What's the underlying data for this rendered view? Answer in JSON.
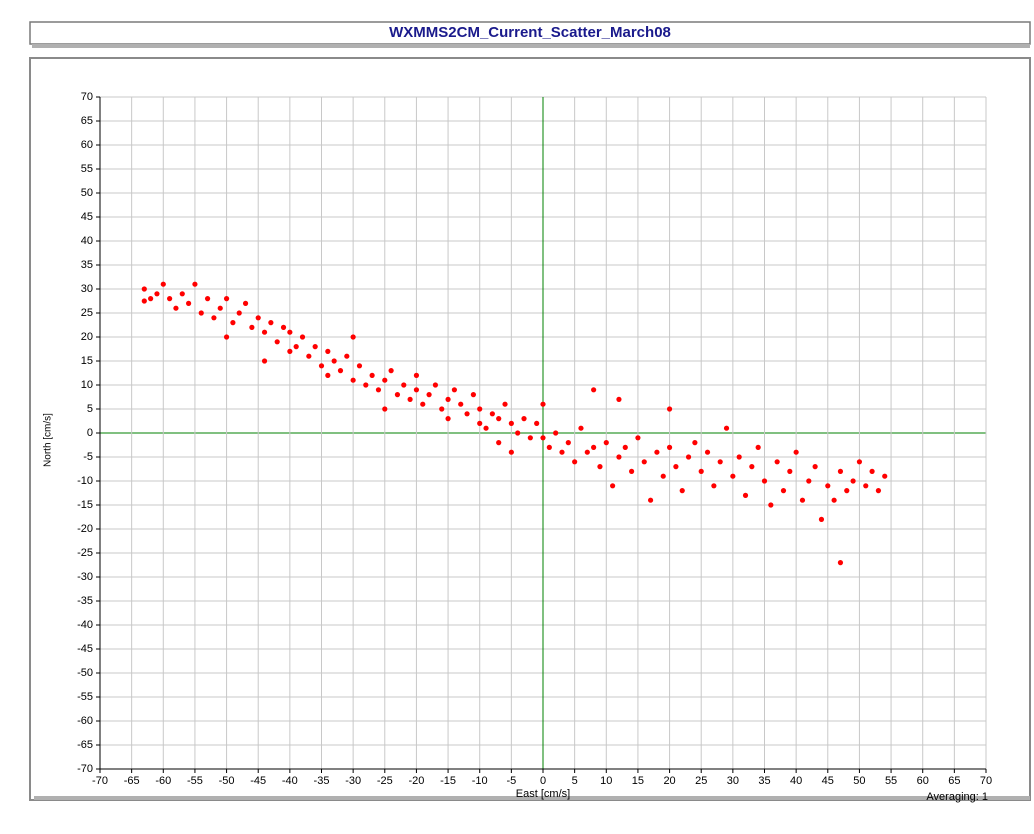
{
  "chart_data": {
    "type": "scatter",
    "title": "WXMMS2CM_Current_Scatter_March08",
    "x_label": "East [cm/s]",
    "y_label": "North [cm/s]",
    "annotation": "Averaging: 1",
    "color": "#ff0000",
    "grid": true,
    "grid_color": "#c8c8c8",
    "zero_line_color": "#008000",
    "xlim": [
      -70,
      70
    ],
    "ylim": [
      -70,
      70
    ],
    "xticks": [
      -70,
      -65,
      -60,
      -55,
      -50,
      -45,
      -40,
      -35,
      -30,
      -25,
      -20,
      -15,
      -10,
      -5,
      0,
      5,
      10,
      15,
      20,
      25,
      30,
      35,
      40,
      45,
      50,
      55,
      60,
      65,
      70
    ],
    "yticks": [
      -70,
      -65,
      -60,
      -55,
      -50,
      -45,
      -40,
      -35,
      -30,
      -25,
      -20,
      -15,
      -10,
      -5,
      0,
      5,
      10,
      15,
      20,
      25,
      30,
      35,
      40,
      45,
      50,
      55,
      60,
      65,
      70
    ],
    "x": [
      -63,
      -63,
      -62,
      -61,
      -60,
      -59,
      -58,
      -57,
      -56,
      -55,
      -54,
      -53,
      -52,
      -51,
      -50,
      -50,
      -49,
      -48,
      -47,
      -46,
      -45,
      -44,
      -44,
      -43,
      -42,
      -41,
      -40,
      -40,
      -39,
      -38,
      -37,
      -36,
      -35,
      -34,
      -34,
      -33,
      -32,
      -31,
      -30,
      -30,
      -29,
      -28,
      -27,
      -26,
      -25,
      -25,
      -24,
      -23,
      -22,
      -21,
      -20,
      -20,
      -19,
      -18,
      -17,
      -16,
      -15,
      -15,
      -14,
      -13,
      -12,
      -11,
      -10,
      -10,
      -9,
      -8,
      -7,
      -7,
      -6,
      -5,
      -5,
      -4,
      -3,
      -2,
      -1,
      0,
      0,
      1,
      2,
      3,
      4,
      5,
      6,
      7,
      8,
      8,
      9,
      10,
      11,
      12,
      12,
      13,
      14,
      15,
      16,
      17,
      18,
      19,
      20,
      20,
      21,
      22,
      23,
      24,
      25,
      26,
      27,
      28,
      29,
      30,
      31,
      32,
      33,
      34,
      35,
      36,
      37,
      38,
      39,
      40,
      41,
      42,
      43,
      44,
      45,
      46,
      47,
      47,
      48,
      49,
      50,
      51,
      52,
      53,
      54
    ],
    "values": [
      30,
      27.5,
      28,
      29,
      31,
      28,
      26,
      29,
      27,
      31,
      25,
      28,
      24,
      26,
      28,
      20,
      23,
      25,
      27,
      22,
      24,
      21,
      15,
      23,
      19,
      22,
      17,
      21,
      18,
      20,
      16,
      18,
      14,
      17,
      12,
      15,
      13,
      16,
      20,
      11,
      14,
      10,
      12,
      9,
      11,
      5,
      13,
      8,
      10,
      7,
      9,
      12,
      6,
      8,
      10,
      5,
      7,
      3,
      9,
      6,
      4,
      8,
      5,
      2,
      1,
      4,
      3,
      -2,
      6,
      2,
      -4,
      0,
      3,
      -1,
      2,
      6,
      -1,
      -3,
      0,
      -4,
      -2,
      -6,
      1,
      -4,
      9,
      -3,
      -7,
      -2,
      -11,
      -5,
      7,
      -3,
      -8,
      -1,
      -6,
      -14,
      -4,
      -9,
      5,
      -3,
      -7,
      -12,
      -5,
      -2,
      -8,
      -4,
      -11,
      -6,
      1,
      -9,
      -5,
      -13,
      -7,
      -3,
      -10,
      -15,
      -6,
      -12,
      -8,
      -4,
      -14,
      -10,
      -7,
      -18,
      -11,
      -14,
      -27,
      -8,
      -12,
      -10,
      -6,
      -11,
      -8,
      -12,
      -9
    ]
  }
}
